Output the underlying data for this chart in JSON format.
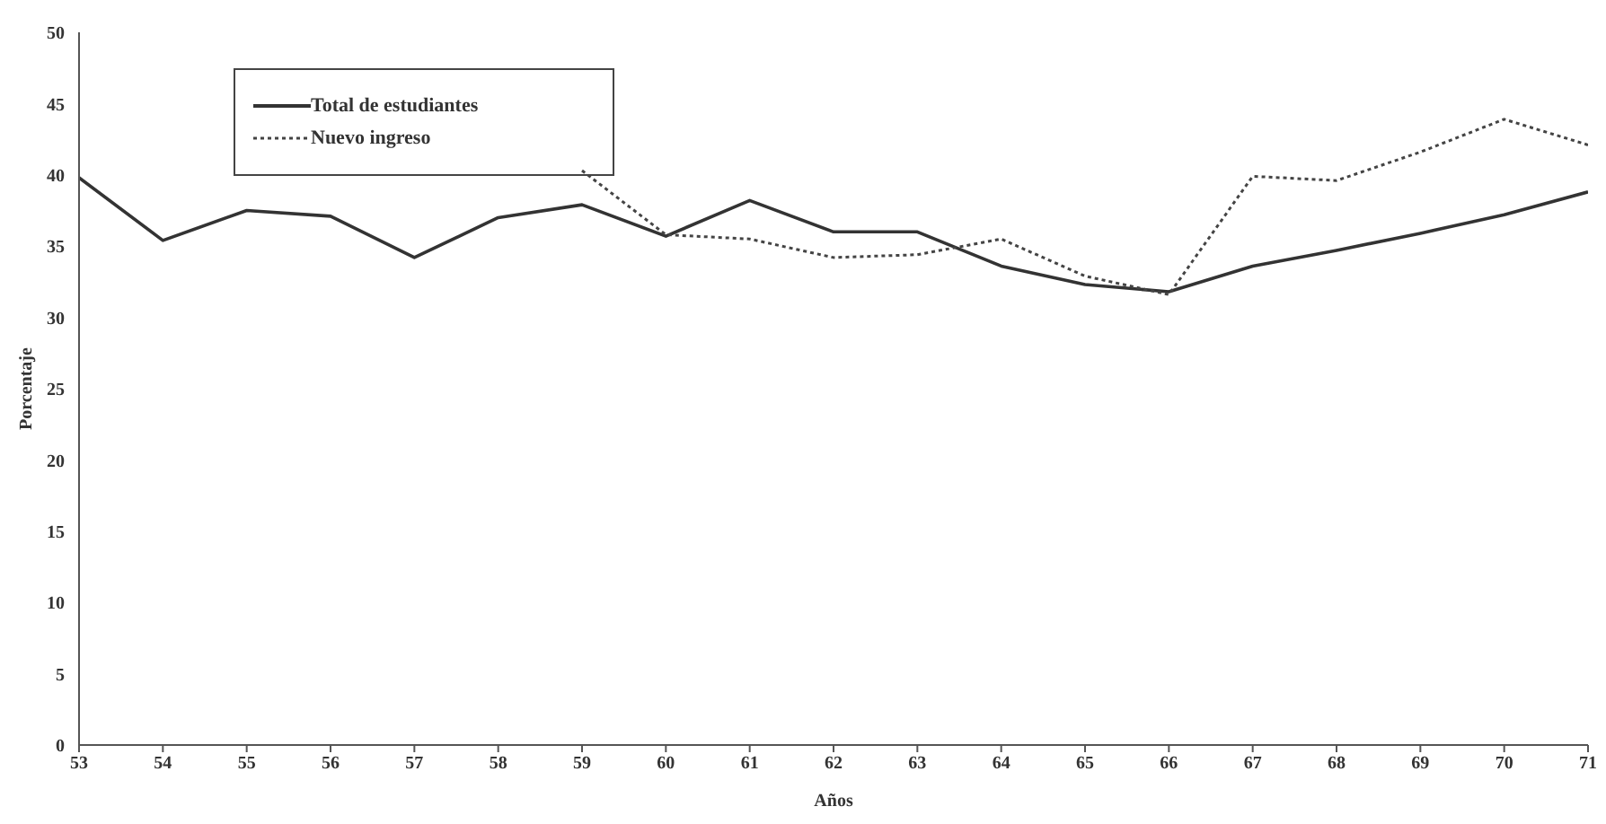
{
  "chart_data": {
    "type": "line",
    "xlabel": "Años",
    "ylabel": "Porcentaje",
    "x": [
      53,
      54,
      55,
      56,
      57,
      58,
      59,
      60,
      61,
      62,
      63,
      64,
      65,
      66,
      67,
      68,
      69,
      70,
      71
    ],
    "series": [
      {
        "name": "Total de estudiantes",
        "color": "#333333",
        "line_style": "solid",
        "values": [
          39.8,
          35.4,
          37.5,
          37.1,
          34.2,
          37.0,
          37.9,
          35.7,
          38.2,
          36.0,
          36.0,
          33.6,
          32.3,
          31.8,
          33.6,
          34.7,
          35.9,
          37.2,
          38.8
        ]
      },
      {
        "name": "Nuevo ingreso",
        "color": "#444444",
        "line_style": "dotted",
        "values": [
          null,
          null,
          null,
          null,
          null,
          null,
          40.3,
          35.8,
          35.5,
          34.2,
          34.4,
          35.5,
          32.9,
          31.6,
          39.9,
          39.6,
          41.6,
          43.9,
          42.1
        ]
      }
    ],
    "xlim": [
      53,
      71
    ],
    "xticks": [
      53,
      54,
      55,
      56,
      57,
      58,
      59,
      60,
      61,
      62,
      63,
      64,
      65,
      66,
      67,
      68,
      69,
      70,
      71
    ],
    "ylim": [
      0,
      50
    ],
    "yticks": [
      0,
      5,
      10,
      15,
      20,
      25,
      30,
      35,
      40,
      45,
      50
    ],
    "grid": false,
    "legend": "top left",
    "marker": "none"
  }
}
